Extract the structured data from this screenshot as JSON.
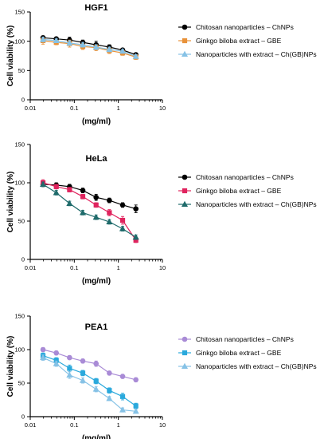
{
  "chart_data": [
    {
      "type": "line",
      "title": "HGF1",
      "xlabel": "(mg/ml)",
      "ylabel": "Cell viability (%)",
      "xscale": "log",
      "xlim": [
        0.01,
        10
      ],
      "ylim": [
        0,
        150
      ],
      "xticks": [
        "0.01",
        "0.1",
        "1",
        "10"
      ],
      "yticks": [
        "0",
        "50",
        "100",
        "150"
      ],
      "legend_position": "right",
      "series": [
        {
          "name": "Chitosan nanoparticles – ChNPs",
          "marker": "circle",
          "color": "#000000",
          "x": [
            0.0195,
            0.039,
            0.078,
            0.156,
            0.3125,
            0.625,
            1.25,
            2.5
          ],
          "y": [
            106,
            104,
            102,
            98,
            94,
            90,
            85,
            77
          ],
          "err": [
            3,
            3,
            5,
            4,
            6,
            4,
            3,
            3
          ]
        },
        {
          "name": "Ginkgo biloba extract – GBE",
          "marker": "square",
          "color": "#e8923a",
          "x": [
            0.0195,
            0.039,
            0.078,
            0.156,
            0.3125,
            0.625,
            1.25,
            2.5
          ],
          "y": [
            101,
            98,
            96,
            91,
            89,
            84,
            80,
            73
          ],
          "err": [
            6,
            4,
            6,
            5,
            5,
            5,
            4,
            4
          ]
        },
        {
          "name": "Nanoparticles with extract – Ch(GB)NPs",
          "marker": "triangle",
          "color": "#86c2e6",
          "x": [
            0.0195,
            0.039,
            0.078,
            0.156,
            0.3125,
            0.625,
            1.25,
            2.5
          ],
          "y": [
            103,
            101,
            97,
            94,
            90,
            86,
            83,
            74
          ],
          "err": [
            4,
            3,
            4,
            4,
            4,
            4,
            3,
            3
          ]
        }
      ]
    },
    {
      "type": "line",
      "title": "HeLa",
      "xlabel": "(mg/ml)",
      "ylabel": "Cell viability (%)",
      "xscale": "log",
      "xlim": [
        0.01,
        10
      ],
      "ylim": [
        0,
        150
      ],
      "xticks": [
        "0.01",
        "0.1",
        "1",
        "10"
      ],
      "yticks": [
        "0",
        "50",
        "100",
        "150"
      ],
      "legend_position": "right",
      "series": [
        {
          "name": "Chitosan nanoparticles – ChNPs",
          "marker": "circle",
          "color": "#000000",
          "x": [
            0.0195,
            0.039,
            0.078,
            0.156,
            0.3125,
            0.625,
            1.25,
            2.5
          ],
          "y": [
            98,
            97,
            95,
            90,
            81,
            77,
            71,
            66
          ],
          "err": [
            3,
            3,
            3,
            3,
            4,
            3,
            3,
            5
          ]
        },
        {
          "name": "Ginkgo biloba extract – GBE",
          "marker": "square",
          "color": "#e0245e",
          "x": [
            0.0195,
            0.039,
            0.078,
            0.156,
            0.3125,
            0.625,
            1.25,
            2.5
          ],
          "y": [
            100,
            95,
            91,
            82,
            71,
            61,
            51,
            25
          ],
          "err": [
            4,
            3,
            3,
            3,
            3,
            4,
            5,
            3
          ]
        },
        {
          "name": "Nanoparticles with extract – Ch(GB)NPs",
          "marker": "triangle",
          "color": "#1f6b6b",
          "x": [
            0.0195,
            0.039,
            0.078,
            0.156,
            0.3125,
            0.625,
            1.25,
            2.5
          ],
          "y": [
            98,
            87,
            73,
            61,
            55,
            49,
            40,
            29
          ],
          "err": [
            3,
            3,
            3,
            3,
            3,
            3,
            3,
            3
          ]
        }
      ]
    },
    {
      "type": "line",
      "title": "PEA1",
      "xlabel": "(mg/ml)",
      "ylabel": "Cell viability (%)",
      "xscale": "log",
      "xlim": [
        0.01,
        10
      ],
      "ylim": [
        0,
        150
      ],
      "xticks": [
        "0.01",
        "0.1",
        "1",
        "10"
      ],
      "yticks": [
        "0",
        "50",
        "100",
        "150"
      ],
      "legend_position": "right",
      "series": [
        {
          "name": "Chitosan nanoparticles – ChNPs",
          "marker": "circle",
          "color": "#a98bd6",
          "x": [
            0.0195,
            0.039,
            0.078,
            0.156,
            0.3125,
            0.625,
            1.25,
            2.5
          ],
          "y": [
            100,
            95,
            88,
            83,
            79,
            65,
            60,
            55
          ],
          "err": [
            3,
            3,
            3,
            3,
            4,
            3,
            3,
            3
          ]
        },
        {
          "name": "Ginkgo biloba extract – GBE",
          "marker": "square",
          "color": "#2aa9dc",
          "x": [
            0.0195,
            0.039,
            0.078,
            0.156,
            0.3125,
            0.625,
            1.25,
            2.5
          ],
          "y": [
            91,
            84,
            72,
            65,
            53,
            39,
            30,
            16
          ],
          "err": [
            4,
            4,
            5,
            4,
            4,
            4,
            5,
            4
          ]
        },
        {
          "name": "Nanoparticles with extract – Ch(GB)NPs",
          "marker": "triangle",
          "color": "#86c2e6",
          "x": [
            0.0195,
            0.039,
            0.078,
            0.156,
            0.3125,
            0.625,
            1.25,
            2.5
          ],
          "y": [
            88,
            79,
            62,
            54,
            41,
            27,
            10,
            8
          ],
          "err": [
            4,
            4,
            5,
            4,
            4,
            3,
            3,
            3
          ]
        }
      ]
    }
  ]
}
